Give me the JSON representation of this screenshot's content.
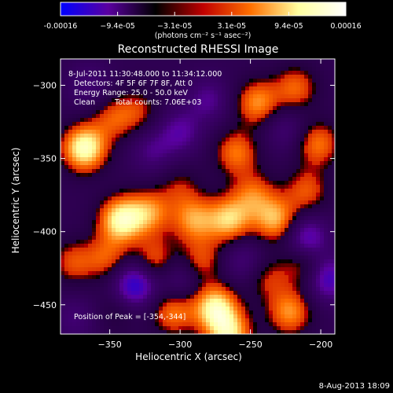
{
  "colorbar": {
    "tick_labels": [
      "-0.00016",
      "−9.4e-05",
      "−3.1e-05",
      "3.1e-05",
      "9.4e-05",
      "0.00016"
    ],
    "unit_label": "(photons cm⁻² s⁻¹ asec⁻²)",
    "range": [
      -0.00016,
      0.00016
    ],
    "colors": [
      "#0000ff",
      "#5a00a0",
      "#000000",
      "#c00000",
      "#ff7000",
      "#ffffa0",
      "#ffffff"
    ]
  },
  "chart_data": {
    "type": "heatmap",
    "title": "Reconstructed RHESSI Image",
    "xlabel": "Heliocentric X (arcsec)",
    "ylabel": "Heliocentric Y (arcsec)",
    "xlim": [
      -385,
      -190
    ],
    "ylim": [
      -470,
      -282
    ],
    "x_ticks": [
      -350,
      -300,
      -250,
      -200
    ],
    "y_ticks": [
      -300,
      -350,
      -400,
      -450
    ],
    "annotations": {
      "time_range": "8-Jul-2011 11:30:48.000 to 11:34:12.000",
      "detectors": "Detectors: 4F 5F 6F 7F 8F, Att 0",
      "energy": "Energy Range: 25.0 - 50.0 keV",
      "method": "Clean",
      "counts": "Total counts: 7.06E+03",
      "peak": "Position of Peak = [-354,-344]"
    },
    "peak_position": [
      -354,
      -344
    ],
    "blobs": [
      {
        "x": -368,
        "y": -343,
        "v": 1.0
      },
      {
        "x": -348,
        "y": -323,
        "v": 0.4
      },
      {
        "x": -342,
        "y": -392,
        "v": 0.92
      },
      {
        "x": -322,
        "y": -387,
        "v": 0.6
      },
      {
        "x": -318,
        "y": -420,
        "v": 0.5
      },
      {
        "x": -305,
        "y": -455,
        "v": 0.55
      },
      {
        "x": -376,
        "y": -421,
        "v": 0.42
      },
      {
        "x": -352,
        "y": -418,
        "v": 0.45
      },
      {
        "x": -245,
        "y": -312,
        "v": 0.62
      },
      {
        "x": -218,
        "y": -302,
        "v": 0.5
      },
      {
        "x": -290,
        "y": -392,
        "v": 0.62
      },
      {
        "x": -265,
        "y": -392,
        "v": 0.75
      },
      {
        "x": -232,
        "y": -392,
        "v": 0.7
      },
      {
        "x": -248,
        "y": -375,
        "v": 0.5
      },
      {
        "x": -210,
        "y": -372,
        "v": 0.45
      },
      {
        "x": -202,
        "y": -340,
        "v": 0.55
      },
      {
        "x": -275,
        "y": -452,
        "v": 0.9
      },
      {
        "x": -265,
        "y": -470,
        "v": 0.8
      },
      {
        "x": -222,
        "y": -455,
        "v": 0.62
      },
      {
        "x": -212,
        "y": -422,
        "v": 0.45
      },
      {
        "x": -330,
        "y": -318,
        "v": 0.35
      },
      {
        "x": -300,
        "y": -370,
        "v": 0.3
      },
      {
        "x": -260,
        "y": -346,
        "v": 0.55
      },
      {
        "x": -285,
        "y": -420,
        "v": 0.45
      },
      {
        "x": -345,
        "y": -455,
        "v": 0.2
      },
      {
        "x": -238,
        "y": -432,
        "v": 0.35
      },
      {
        "x": -300,
        "y": -332,
        "v": -0.45
      },
      {
        "x": -320,
        "y": -345,
        "v": -0.35
      },
      {
        "x": -280,
        "y": -310,
        "v": -0.4
      },
      {
        "x": -332,
        "y": -436,
        "v": -0.8
      },
      {
        "x": -210,
        "y": -405,
        "v": -0.65
      },
      {
        "x": -195,
        "y": -432,
        "v": -0.65
      },
      {
        "x": -300,
        "y": -432,
        "v": -0.35
      },
      {
        "x": -225,
        "y": -330,
        "v": -0.3
      },
      {
        "x": -365,
        "y": -300,
        "v": -0.3
      },
      {
        "x": -255,
        "y": -420,
        "v": -0.35
      },
      {
        "x": -375,
        "y": -460,
        "v": -0.3
      }
    ]
  },
  "footer": {
    "timestamp": "8-Aug-2013 18:09"
  }
}
